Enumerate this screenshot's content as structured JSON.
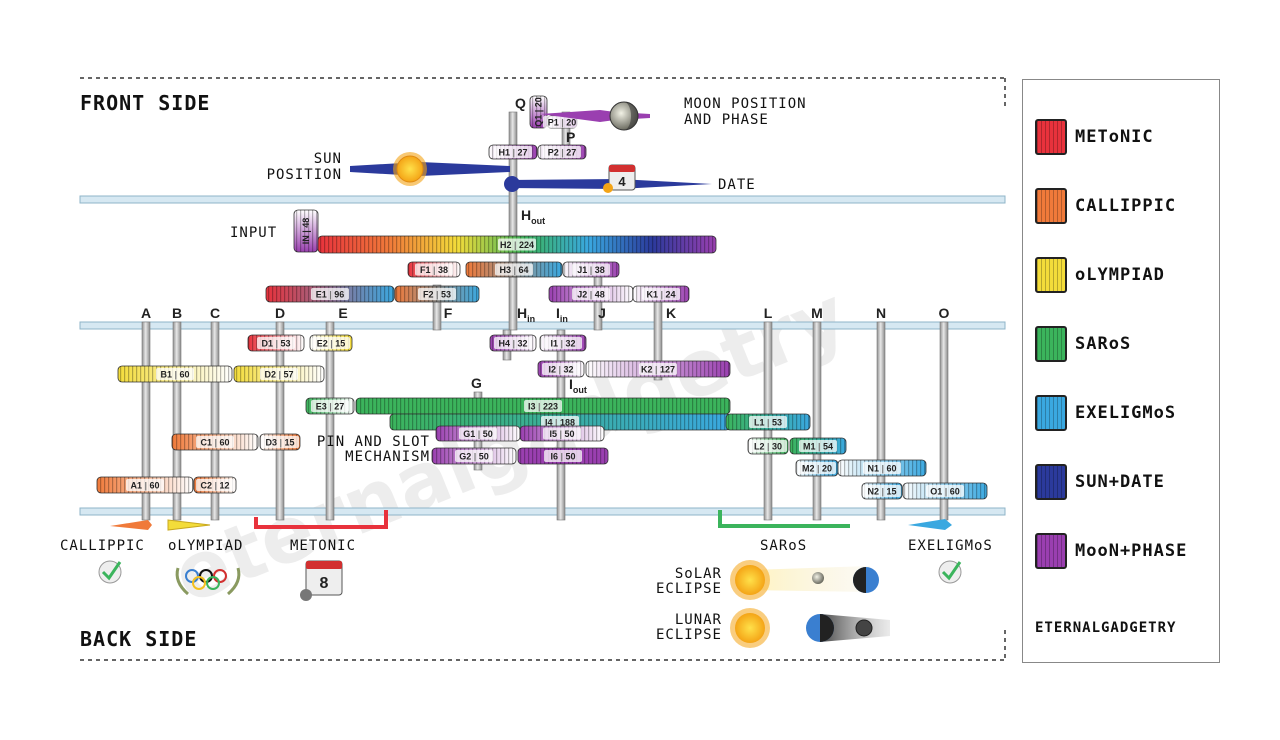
{
  "titles": {
    "front": "FRONT SIDE",
    "back": "BACK SIDE"
  },
  "front_notes": {
    "moon": [
      "MOON POSITION",
      "AND PHASE"
    ],
    "sun": [
      "SUN",
      "POSITION"
    ],
    "date": "DATE",
    "input": "INPUT",
    "date_icon_number": "4"
  },
  "axes": [
    "A",
    "B",
    "C",
    "D",
    "E",
    "F",
    "J",
    "K",
    "L",
    "M",
    "N",
    "O"
  ],
  "special_axes": {
    "Q": "Q",
    "P": "P",
    "Hout": "H",
    "Hout_sub": "out",
    "Hin": "H",
    "Hin_sub": "in",
    "Iin": "I",
    "Iin_sub": "in",
    "Iout": "I",
    "Iout_sub": "out",
    "G": "G"
  },
  "gears": [
    {
      "name": "Q1",
      "teeth": "20"
    },
    {
      "name": "P1",
      "teeth": "20"
    },
    {
      "name": "H1",
      "teeth": "27"
    },
    {
      "name": "P2",
      "teeth": "27"
    },
    {
      "name": "IN",
      "teeth": "48"
    },
    {
      "name": "H2",
      "teeth": "224"
    },
    {
      "name": "F1",
      "teeth": "38"
    },
    {
      "name": "H3",
      "teeth": "64"
    },
    {
      "name": "J1",
      "teeth": "38"
    },
    {
      "name": "E1",
      "teeth": "96"
    },
    {
      "name": "F2",
      "teeth": "53"
    },
    {
      "name": "J2",
      "teeth": "48"
    },
    {
      "name": "K1",
      "teeth": "24"
    },
    {
      "name": "D1",
      "teeth": "53"
    },
    {
      "name": "E2",
      "teeth": "15"
    },
    {
      "name": "H4",
      "teeth": "32"
    },
    {
      "name": "I1",
      "teeth": "32"
    },
    {
      "name": "B1",
      "teeth": "60"
    },
    {
      "name": "D2",
      "teeth": "57"
    },
    {
      "name": "I2",
      "teeth": "32"
    },
    {
      "name": "K2",
      "teeth": "127"
    },
    {
      "name": "E3",
      "teeth": "27"
    },
    {
      "name": "I3",
      "teeth": "223"
    },
    {
      "name": "I4",
      "teeth": "188"
    },
    {
      "name": "L1",
      "teeth": "53"
    },
    {
      "name": "G1",
      "teeth": "50"
    },
    {
      "name": "I5",
      "teeth": "50"
    },
    {
      "name": "C1",
      "teeth": "60"
    },
    {
      "name": "D3",
      "teeth": "15"
    },
    {
      "name": "L2",
      "teeth": "30"
    },
    {
      "name": "M1",
      "teeth": "54"
    },
    {
      "name": "G2",
      "teeth": "50"
    },
    {
      "name": "I6",
      "teeth": "50"
    },
    {
      "name": "M2",
      "teeth": "20"
    },
    {
      "name": "N1",
      "teeth": "60"
    },
    {
      "name": "A1",
      "teeth": "60"
    },
    {
      "name": "C2",
      "teeth": "12"
    },
    {
      "name": "N2",
      "teeth": "15"
    },
    {
      "name": "O1",
      "teeth": "60"
    }
  ],
  "pin_slot": [
    "PIN AND SLOT",
    "MECHANISM"
  ],
  "back_labels": {
    "callippic": "CALLIPPIC",
    "olympiad": "oLYMPIAD",
    "metonic": "METONIC",
    "saros": "SARoS",
    "exeligmos": "EXELIGMoS",
    "calendar_number": "8",
    "solar": [
      "SoLAR",
      "ECLIPSE"
    ],
    "lunar": [
      "LUNAR",
      "ECLIPSE"
    ]
  },
  "watermark": "eternalgadgetry",
  "legend": [
    {
      "label": "METoNIC",
      "color": "#e8323c"
    },
    {
      "label": "CALLIPPIC",
      "color": "#f07a3a"
    },
    {
      "label": "oLYMPIAD",
      "color": "#f3dc3a"
    },
    {
      "label": "SARoS",
      "color": "#3bb45c"
    },
    {
      "label": "EXELIGMoS",
      "color": "#3aa8e0"
    },
    {
      "label": "SUN+DATE",
      "color": "#2b3a9c"
    },
    {
      "label": "MooN+PHASE",
      "color": "#9a3fb0"
    }
  ],
  "brand": "ETERNALGADGETRY"
}
